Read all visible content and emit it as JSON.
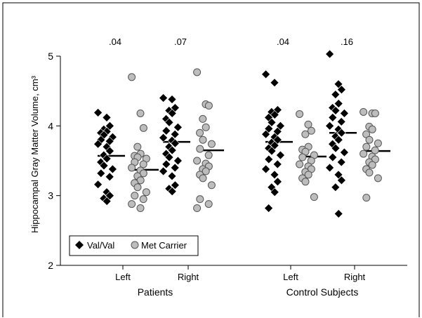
{
  "chart_data": {
    "type": "scatter",
    "title": "",
    "ylabel": "Hippocampal Gray Matter Volume, cm³",
    "ylim": [
      2,
      5
    ],
    "yticks": [
      2,
      3,
      4,
      5
    ],
    "grid": false,
    "legend_position": "bottom-left",
    "groups": [
      {
        "name": "Patients",
        "conditions": [
          {
            "name": "Left",
            "p_value": ".04",
            "series": [
              {
                "name": "Val/Val",
                "mean": 3.57,
                "values": [
                  4.19,
                  4.12,
                  4.0,
                  3.95,
                  3.92,
                  3.9,
                  3.87,
                  3.84,
                  3.8,
                  3.78,
                  3.74,
                  3.7,
                  3.64,
                  3.58,
                  3.53,
                  3.48,
                  3.43,
                  3.38,
                  3.32,
                  3.27,
                  3.16,
                  3.05,
                  3.0,
                  2.96,
                  2.92
                ]
              },
              {
                "name": "Met Carrier",
                "mean": 3.37,
                "values": [
                  4.7,
                  4.18,
                  3.97,
                  3.7,
                  3.6,
                  3.57,
                  3.55,
                  3.53,
                  3.48,
                  3.45,
                  3.4,
                  3.36,
                  3.32,
                  3.28,
                  3.22,
                  3.18,
                  3.12,
                  3.05,
                  3.0,
                  2.95,
                  2.88,
                  2.82
                ]
              }
            ]
          },
          {
            "name": "Right",
            "p_value": ".07",
            "series": [
              {
                "name": "Val/Val",
                "mean": 3.77,
                "values": [
                  4.4,
                  4.38,
                  4.26,
                  4.22,
                  4.18,
                  4.1,
                  4.05,
                  3.98,
                  3.93,
                  3.88,
                  3.83,
                  3.79,
                  3.75,
                  3.7,
                  3.65,
                  3.6,
                  3.55,
                  3.5,
                  3.45,
                  3.4,
                  3.35,
                  3.28,
                  3.15,
                  3.1,
                  3.06
                ]
              },
              {
                "name": "Met Carrier",
                "mean": 3.65,
                "values": [
                  4.77,
                  4.31,
                  4.29,
                  4.1,
                  3.98,
                  3.9,
                  3.8,
                  3.74,
                  3.67,
                  3.58,
                  3.5,
                  3.46,
                  3.42,
                  3.38,
                  3.35,
                  3.3,
                  3.25,
                  3.15,
                  2.95,
                  2.88,
                  2.82
                ]
              }
            ]
          }
        ]
      },
      {
        "name": "Control Subjects",
        "conditions": [
          {
            "name": "Left",
            "p_value": ".04",
            "series": [
              {
                "name": "Val/Val",
                "mean": 3.77,
                "values": [
                  4.74,
                  4.62,
                  4.23,
                  4.2,
                  4.16,
                  4.12,
                  4.05,
                  4.0,
                  3.96,
                  3.92,
                  3.88,
                  3.84,
                  3.8,
                  3.76,
                  3.72,
                  3.68,
                  3.64,
                  3.58,
                  3.52,
                  3.45,
                  3.38,
                  3.3,
                  3.2,
                  3.12,
                  3.05,
                  2.82
                ]
              },
              {
                "name": "Met Carrier",
                "mean": 3.56,
                "values": [
                  4.17,
                  4.02,
                  3.93,
                  3.88,
                  3.7,
                  3.66,
                  3.63,
                  3.58,
                  3.55,
                  3.5,
                  3.45,
                  3.42,
                  3.38,
                  3.34,
                  3.3,
                  3.25,
                  3.2,
                  2.98
                ]
              }
            ]
          },
          {
            "name": "Right",
            "p_value": ".16",
            "series": [
              {
                "name": "Val/Val",
                "mean": 3.9,
                "values": [
                  5.03,
                  4.6,
                  4.52,
                  4.45,
                  4.32,
                  4.26,
                  4.22,
                  4.18,
                  4.12,
                  4.06,
                  4.0,
                  3.95,
                  3.9,
                  3.85,
                  3.8,
                  3.74,
                  3.68,
                  3.62,
                  3.55,
                  3.48,
                  3.4,
                  3.3,
                  3.22,
                  3.12,
                  2.74
                ]
              },
              {
                "name": "Met Carrier",
                "mean": 3.64,
                "values": [
                  4.2,
                  4.18,
                  4.18,
                  3.99,
                  3.95,
                  3.88,
                  3.8,
                  3.75,
                  3.7,
                  3.65,
                  3.6,
                  3.56,
                  3.52,
                  3.48,
                  3.44,
                  3.38,
                  3.33,
                  3.25,
                  2.97
                ]
              }
            ]
          }
        ]
      }
    ],
    "legend": [
      {
        "name": "Val/Val",
        "marker": "diamond",
        "color": "#000000"
      },
      {
        "name": "Met Carrier",
        "marker": "circle",
        "color": "#bdbdbd"
      }
    ]
  }
}
